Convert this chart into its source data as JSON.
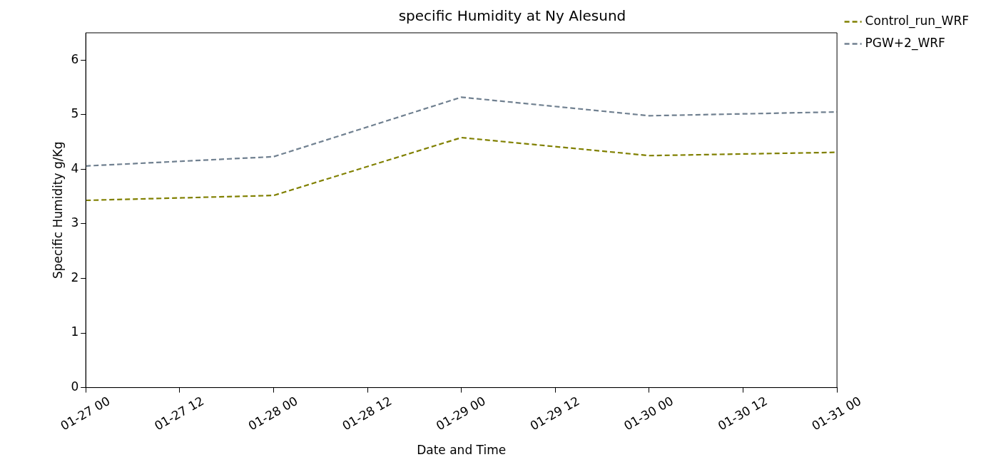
{
  "chart_data": {
    "type": "line",
    "title": "specific Humidity at Ny Alesund",
    "xlabel": "Date and Time",
    "ylabel": "Specific Humidity g/Kg",
    "x": [
      "--01-27T00:00",
      "--01-28T00:00",
      "--01-29T00:00",
      "--01-30T00:00",
      "--01-31T00:00"
    ],
    "series": [
      {
        "name": "Control_run_WRF",
        "color": "#808000",
        "values": [
          3.43,
          3.52,
          4.58,
          4.25,
          4.31
        ]
      },
      {
        "name": "PGW+2_WRF",
        "color": "#708090",
        "values": [
          4.06,
          4.23,
          5.32,
          4.98,
          5.05
        ]
      }
    ],
    "xlim": [
      "--01-27T00:00",
      "--01-31T00:00"
    ],
    "xticks": [
      {
        "value": "--01-27T00:00",
        "label": "01-27 00"
      },
      {
        "value": "--01-27T12:00",
        "label": "01-27 12"
      },
      {
        "value": "--01-28T00:00",
        "label": "01-28 00"
      },
      {
        "value": "--01-28T12:00",
        "label": "01-28 12"
      },
      {
        "value": "--01-29T00:00",
        "label": "01-29 00"
      },
      {
        "value": "--01-29T12:00",
        "label": "01-29 12"
      },
      {
        "value": "--01-30T00:00",
        "label": "01-30 00"
      },
      {
        "value": "--01-30T12:00",
        "label": "01-30 12"
      },
      {
        "value": "--01-31T00:00",
        "label": "01-31 00"
      }
    ],
    "ylim": [
      0,
      6.5
    ],
    "yticks": [
      0,
      1,
      2,
      3,
      4,
      5,
      6
    ],
    "grid": false,
    "legend": "top right",
    "line_style": "dashed",
    "marker": "none"
  }
}
